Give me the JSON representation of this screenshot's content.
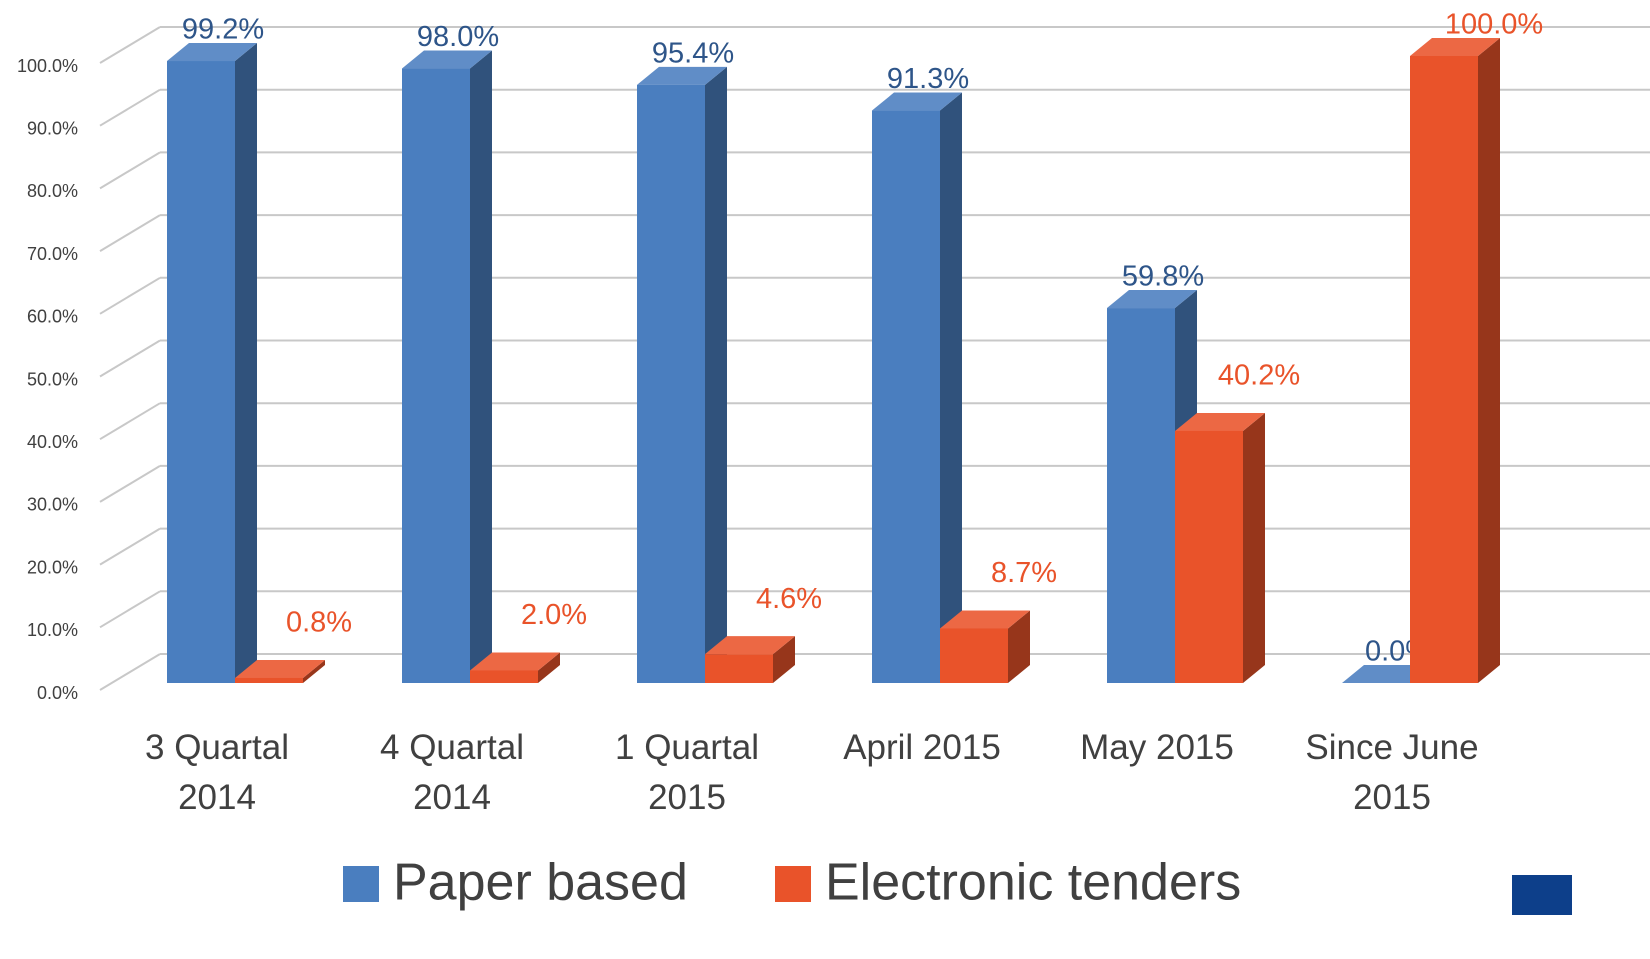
{
  "chart_data": {
    "type": "bar3d",
    "categories": [
      "3 Quartal 2014",
      "4 Quartal 2014",
      "1 Quartal 2015",
      "April 2015",
      "May 2015",
      "Since June 2015"
    ],
    "series": [
      {
        "name": "Paper based",
        "color": "#4a7ebf",
        "values": [
          99.2,
          98.0,
          95.4,
          91.3,
          59.8,
          0.0
        ],
        "value_labels": [
          "99.2%",
          "98.0%",
          "95.4%",
          "91.3%",
          "59.8%",
          "0.0%"
        ]
      },
      {
        "name": "Electronic tenders",
        "color": "#e9532a",
        "values": [
          0.8,
          2.0,
          4.6,
          8.7,
          40.2,
          100.0
        ],
        "value_labels": [
          "0.8%",
          "2.0%",
          "4.6%",
          "8.7%",
          "40.2%",
          "100.0%"
        ]
      }
    ],
    "ylim": [
      0,
      100
    ],
    "yticks": [
      {
        "value": 0,
        "label": "0.0%"
      },
      {
        "value": 10,
        "label": "10.0%"
      },
      {
        "value": 20,
        "label": "20.0%"
      },
      {
        "value": 30,
        "label": "30.0%"
      },
      {
        "value": 40,
        "label": "40.0%"
      },
      {
        "value": 50,
        "label": "50.0%"
      },
      {
        "value": 60,
        "label": "60.0%"
      },
      {
        "value": 70,
        "label": "70.0%"
      },
      {
        "value": 80,
        "label": "80.0%"
      },
      {
        "value": 90,
        "label": "90.0%"
      },
      {
        "value": 100,
        "label": "100.0%"
      }
    ],
    "grid": true,
    "legend": "bottom"
  }
}
